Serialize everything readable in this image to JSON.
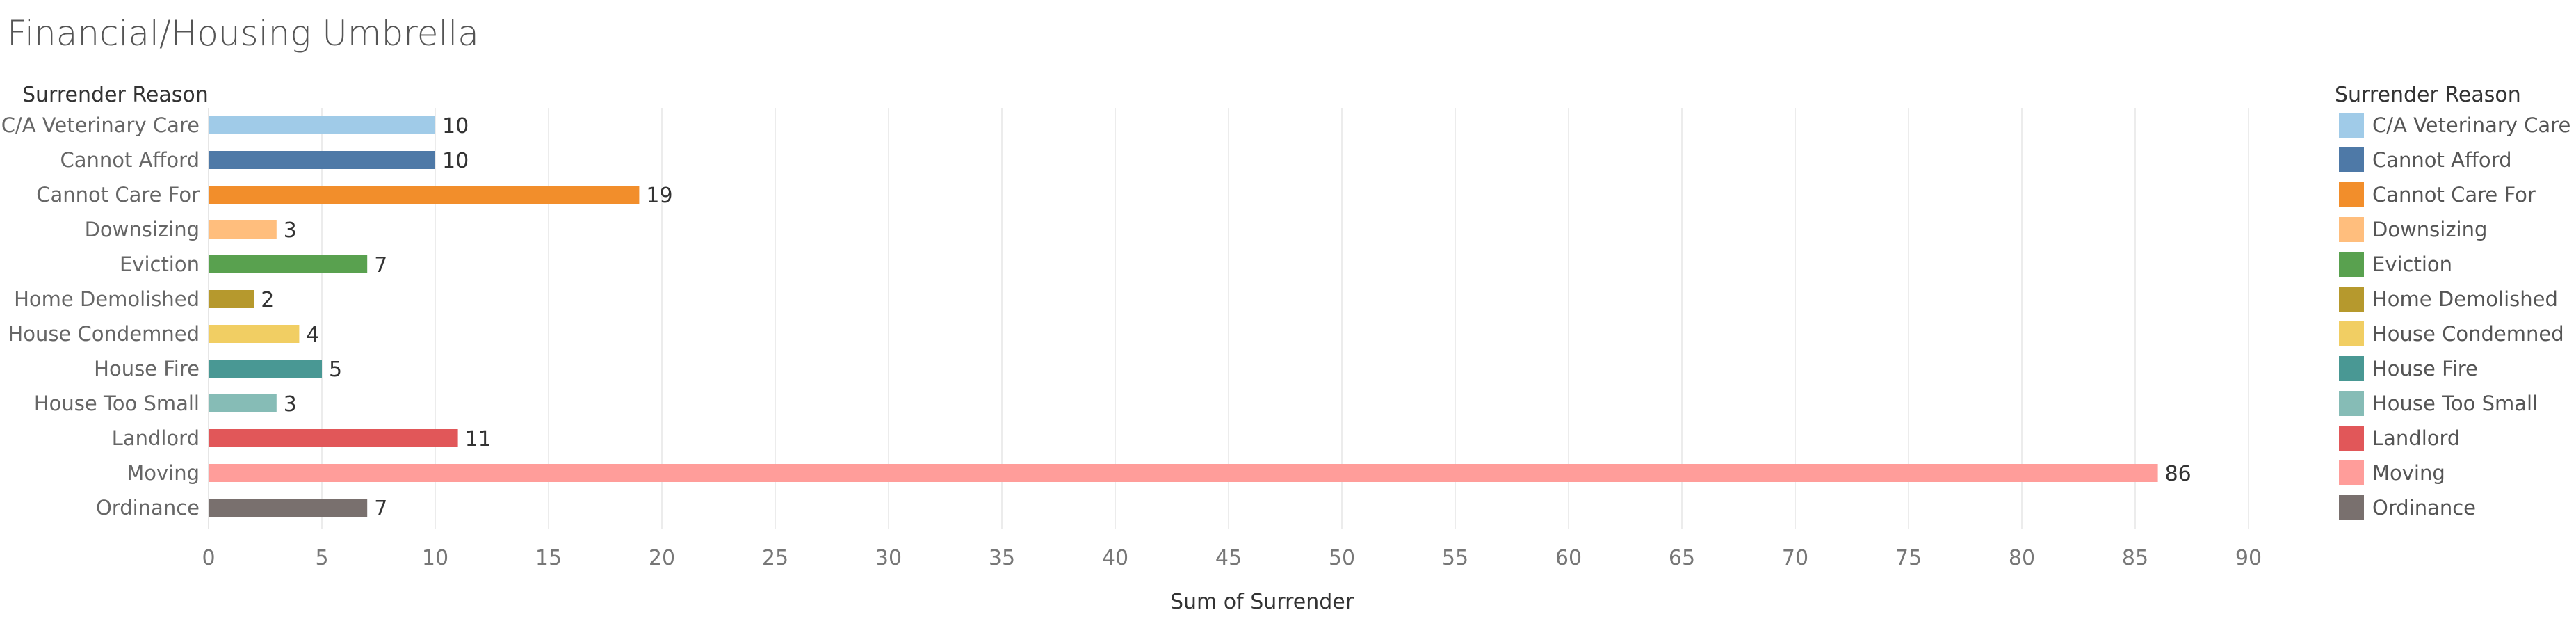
{
  "chart_data": {
    "type": "bar",
    "orientation": "horizontal",
    "title": "Financial/Housing Umbrella",
    "row_header": "Surrender Reason",
    "xlabel": "Sum of Surrender",
    "xlim": [
      0,
      90
    ],
    "xticks": [
      0,
      5,
      10,
      15,
      20,
      25,
      30,
      35,
      40,
      45,
      50,
      55,
      60,
      65,
      70,
      75,
      80,
      85,
      90
    ],
    "grid": true,
    "legend": {
      "title": "Surrender Reason",
      "position": "right"
    },
    "categories": [
      "C/A Veterinary Care",
      "Cannot Afford",
      "Cannot Care For",
      "Downsizing",
      "Eviction",
      "Home Demolished",
      "House Condemned",
      "House Fire",
      "House Too Small",
      "Landlord",
      "Moving",
      "Ordinance"
    ],
    "values": [
      10,
      10,
      19,
      3,
      7,
      2,
      4,
      5,
      3,
      11,
      86,
      7
    ],
    "colors": [
      "#a0cbe8",
      "#4e79a7",
      "#f28e2b",
      "#ffbe7d",
      "#59a14f",
      "#b6992d",
      "#f1ce63",
      "#499894",
      "#86bcb6",
      "#e15759",
      "#ff9d9a",
      "#79706e"
    ]
  }
}
